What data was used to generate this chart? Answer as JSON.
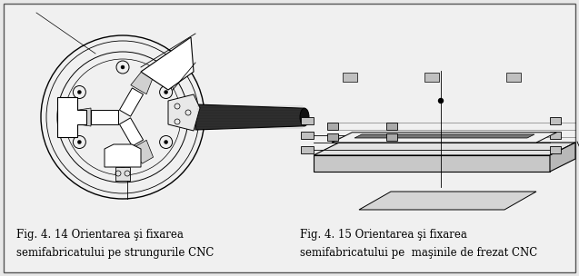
{
  "fig_width": 6.37,
  "fig_height": 3.04,
  "dpi": 100,
  "background_color": "#e8e8e8",
  "box_facecolor": "#f0f0f0",
  "box_edgecolor": "#555555",
  "caption_left_line1": "Fig. 4. 14 Orientarea şi fixarea",
  "caption_left_line2": "semifabricatului pe strungurile CNC",
  "caption_right_line1": "Fig. 4. 15 Orientarea şi fixarea",
  "caption_right_line2": "semifabricatului pe  maşinile de frezat CNC",
  "caption_fontsize": 8.5,
  "caption_font": "DejaVu Serif"
}
